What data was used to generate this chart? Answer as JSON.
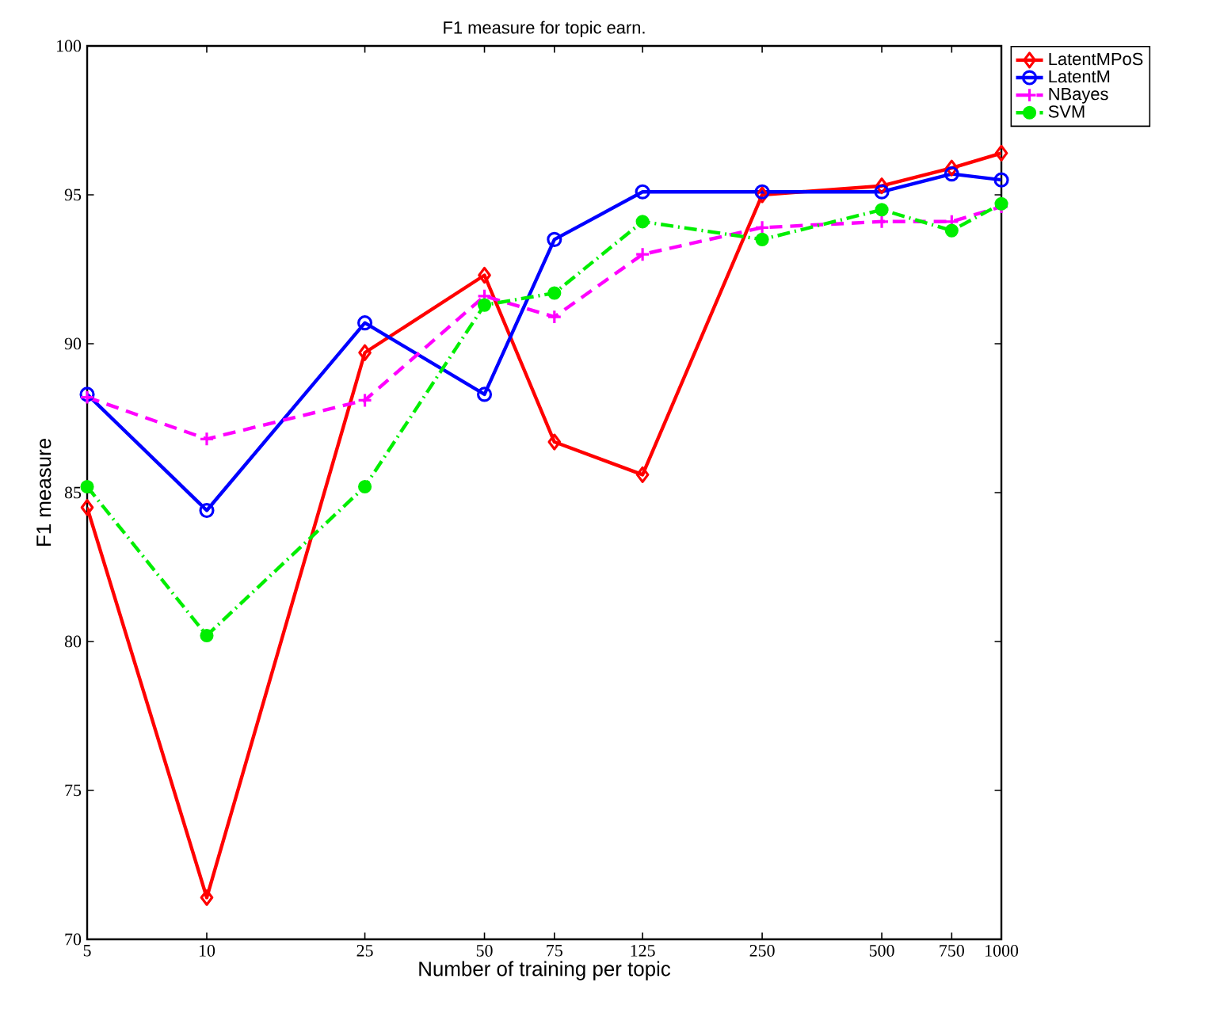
{
  "chart_data": {
    "type": "line",
    "title": "F1 measure for topic earn.",
    "xlabel": "Number of training per topic",
    "ylabel": "F1 measure",
    "log": "x",
    "x": [
      5,
      10,
      25,
      50,
      75,
      125,
      250,
      500,
      750,
      1000
    ],
    "xlim": [
      5,
      1000
    ],
    "xticks": [
      5,
      10,
      25,
      50,
      75,
      125,
      250,
      500,
      750,
      1000
    ],
    "ylim": [
      70,
      100
    ],
    "yticks": [
      70,
      75,
      80,
      85,
      90,
      95,
      100
    ],
    "grid": false,
    "legend": "top right",
    "series": [
      {
        "name": "LatentMPoS",
        "color": "#ff0000",
        "marker": "diamond",
        "line_style": "solid",
        "values": [
          84.5,
          71.4,
          89.7,
          92.3,
          86.7,
          85.6,
          95.0,
          95.3,
          95.9,
          96.4
        ]
      },
      {
        "name": "LatentM",
        "color": "#0000ff",
        "marker": "circle",
        "line_style": "solid",
        "values": [
          88.3,
          84.4,
          90.7,
          88.3,
          93.5,
          95.1,
          95.1,
          95.1,
          95.7,
          95.5
        ]
      },
      {
        "name": "NBayes",
        "color": "#ff00ff",
        "marker": "cross",
        "line_style": "dashed",
        "values": [
          88.2,
          86.8,
          88.1,
          91.6,
          90.9,
          93.0,
          93.9,
          94.1,
          94.1,
          94.6
        ]
      },
      {
        "name": "SVM",
        "color": "#00ee00",
        "marker": "circle_filled",
        "line_style": "dashdotted",
        "values": [
          85.2,
          80.2,
          85.2,
          91.3,
          91.7,
          94.1,
          93.5,
          94.5,
          93.8,
          94.7
        ]
      }
    ]
  }
}
